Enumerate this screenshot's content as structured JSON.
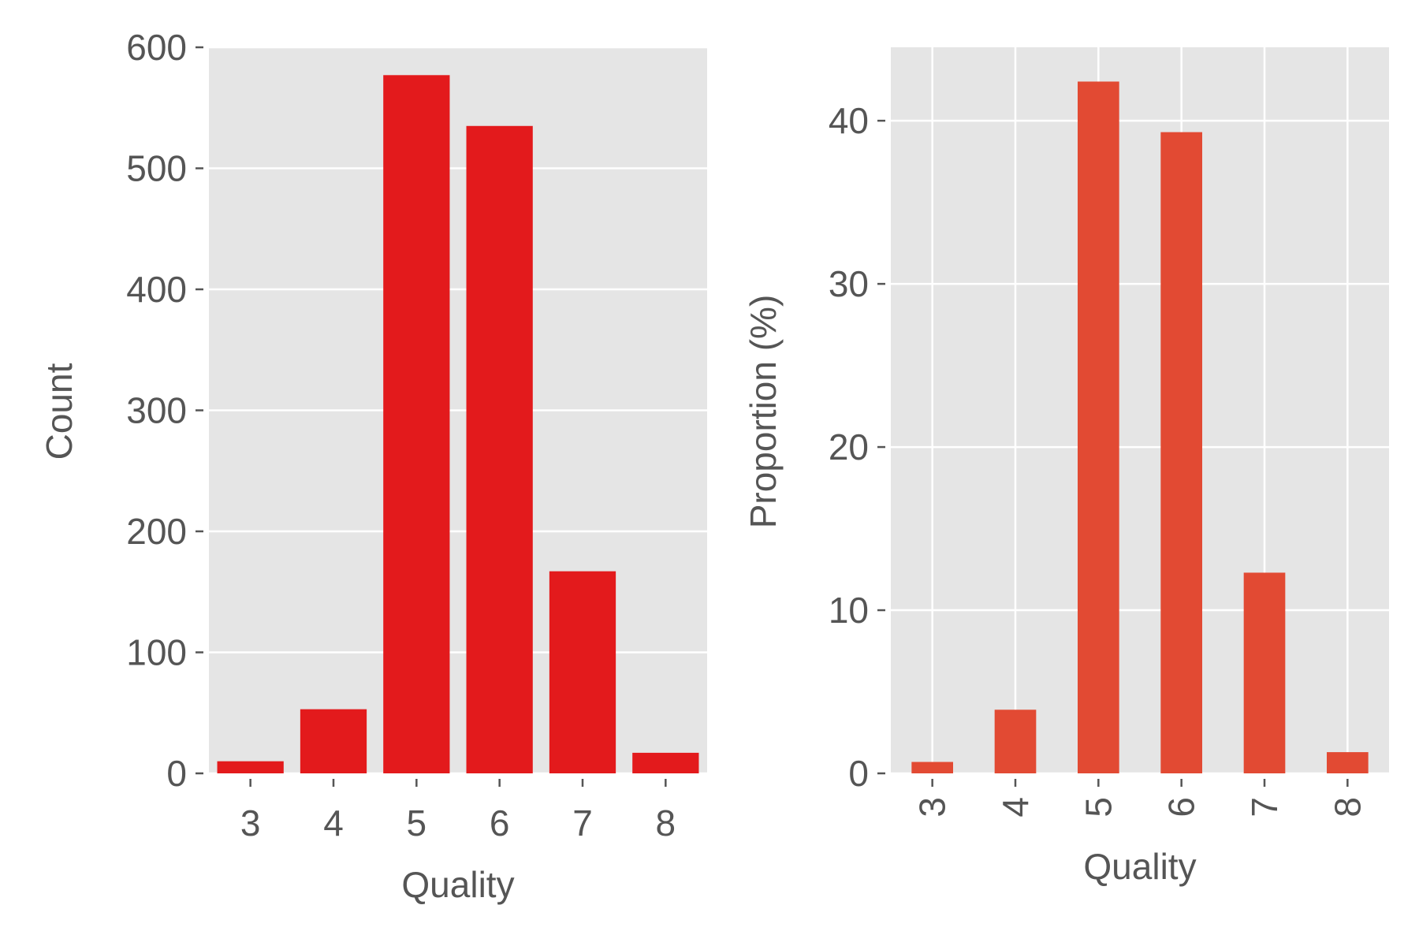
{
  "chart_data": [
    {
      "type": "bar",
      "categories": [
        "3",
        "4",
        "5",
        "6",
        "7",
        "8"
      ],
      "values": [
        10,
        53,
        577,
        535,
        167,
        17
      ],
      "title": "",
      "xlabel": "Quality",
      "ylabel": "Count",
      "ylim": [
        0,
        600
      ],
      "yticks": [
        "0",
        "100",
        "200",
        "300",
        "400",
        "500",
        "600"
      ],
      "ytick_values": [
        0,
        100,
        200,
        300,
        400,
        500,
        600
      ],
      "grid": "y",
      "bar_color": "#e31a1c"
    },
    {
      "type": "bar",
      "categories": [
        "3",
        "4",
        "5",
        "6",
        "7",
        "8"
      ],
      "values": [
        0.7,
        3.9,
        42.4,
        39.3,
        12.3,
        1.3
      ],
      "title": "",
      "xlabel": "Quality",
      "ylabel": "Proportion (%)",
      "ylim": [
        0,
        44.5
      ],
      "yticks": [
        "0",
        "10",
        "20",
        "30",
        "40"
      ],
      "ytick_values": [
        0,
        10,
        20,
        30,
        40
      ],
      "grid": "both",
      "xtick_rotation": "vertical",
      "bar_color": "#e24a33"
    }
  ]
}
